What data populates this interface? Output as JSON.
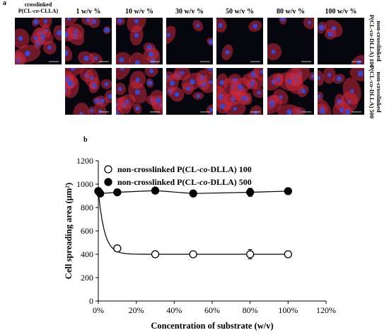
{
  "panel_a": {
    "label": "a",
    "column_headers": [
      {
        "line1": "crosslinked",
        "line2": "P(CL-",
        "italic": "co",
        "line2b": "-CLLA)"
      },
      {
        "text": "1 w/v %"
      },
      {
        "text": "10 w/v %"
      },
      {
        "text": "30 w/v %"
      },
      {
        "text": "50 w/v %"
      },
      {
        "text": "80 w/v %"
      },
      {
        "text": "100 w/v %"
      }
    ],
    "row_headers": [
      {
        "line1": "non-crosslinked",
        "pre": "P(CL-",
        "italic": "co",
        "post": "-DLLA) 100"
      },
      {
        "line1": "non-crosslinked",
        "pre": "P(CL-",
        "italic": "co",
        "post": "-DLLA) 500"
      }
    ],
    "micrograph_colors": {
      "background": "#06060e",
      "actin": "#c8283c",
      "nucleus": "#3448d8"
    }
  },
  "panel_b": {
    "label": "b"
  },
  "chart_data": {
    "type": "scatter",
    "xlabel": "Concentration of substrate (w/v)",
    "ylabel": "Cell spreading area (μm²)",
    "xlim": [
      0,
      120
    ],
    "ylim": [
      0,
      1200
    ],
    "x_ticks": [
      "0%",
      "20%",
      "40%",
      "60%",
      "80%",
      "100%",
      "120%"
    ],
    "y_ticks": [
      "0",
      "200",
      "400",
      "600",
      "800",
      "1000",
      "1200"
    ],
    "grid": false,
    "legend_position": "top-left",
    "series": [
      {
        "name": "non-crosslinked P(CL-co-DLLA) 100",
        "legend_pre": "non-crosslinked P(CL-",
        "legend_italic": "co",
        "legend_post": "-DLLA) 100",
        "marker": "open-circle",
        "x": [
          0,
          10,
          30,
          50,
          80,
          100
        ],
        "y": [
          940,
          450,
          400,
          400,
          400,
          400
        ],
        "yerr": [
          15,
          12,
          12,
          12,
          40,
          20
        ]
      },
      {
        "name": "non-crosslinked P(CL-co-DLLA) 500",
        "legend_pre": "non-crosslinked P(CL-",
        "legend_italic": "co",
        "legend_post": "-DLLA) 500",
        "marker": "filled-circle",
        "x": [
          0,
          1,
          10,
          30,
          50,
          80,
          100
        ],
        "y": [
          940,
          920,
          930,
          945,
          920,
          930,
          940
        ],
        "yerr": [
          10,
          10,
          12,
          12,
          10,
          35,
          12
        ]
      }
    ]
  }
}
